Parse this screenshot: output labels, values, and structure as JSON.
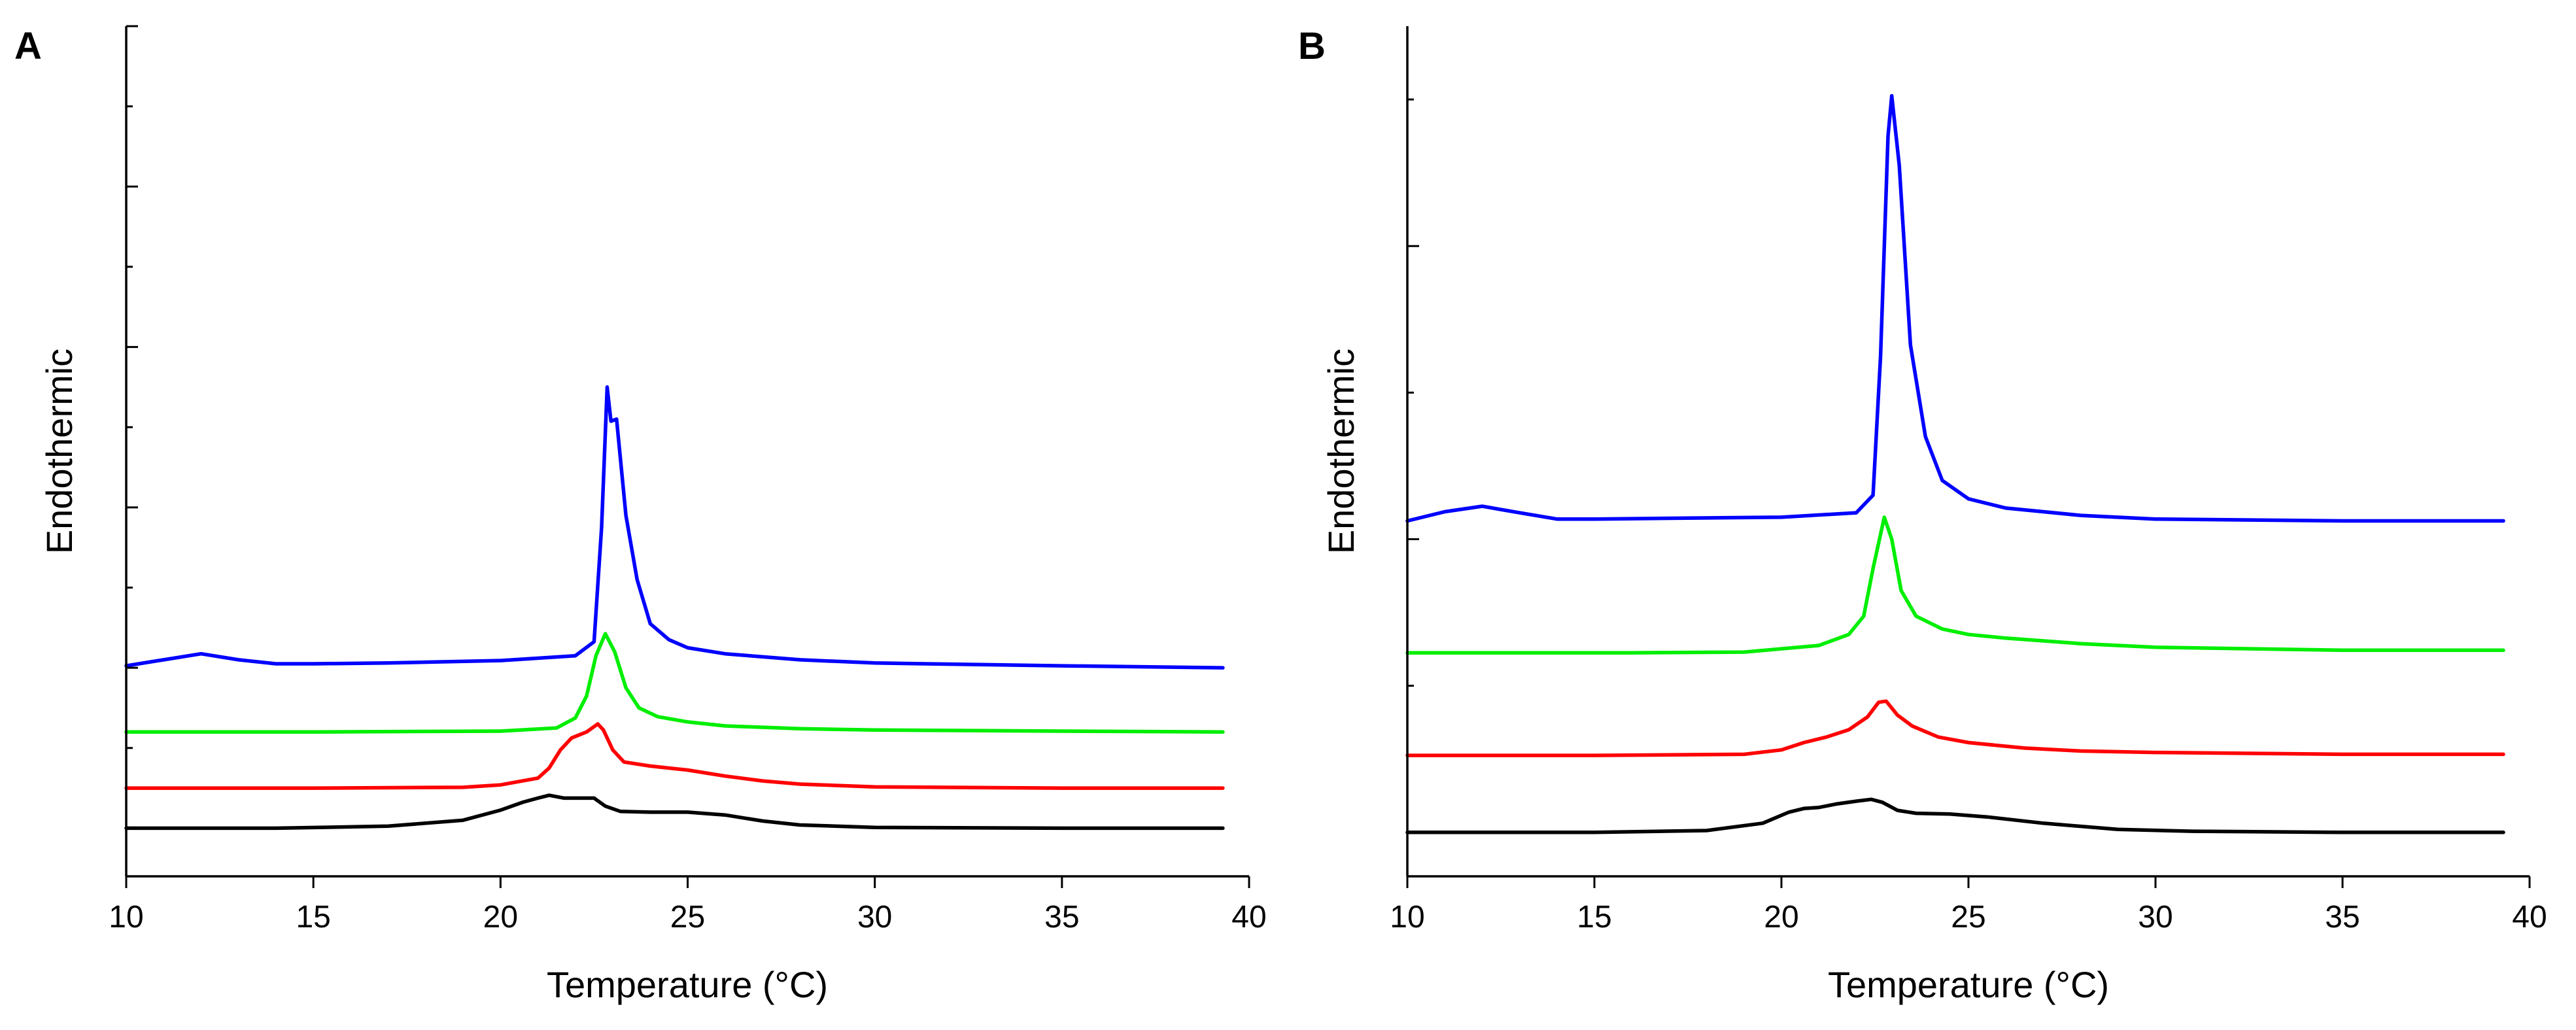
{
  "chart_data": [
    {
      "type": "line",
      "panel": "A",
      "xlabel": "Temperature (°C)",
      "ylabel": "Endothermic",
      "xlim": [
        10,
        40
      ],
      "ylim": [
        -1.2,
        20
      ],
      "xticks": [
        10,
        15,
        20,
        25,
        30,
        35,
        40
      ],
      "yticks_major": [
        0,
        4,
        8,
        12,
        16,
        20
      ],
      "yticks_minor": [
        2,
        6,
        10,
        14,
        18
      ],
      "series": [
        {
          "name": "black",
          "color": "#000000",
          "x": [
            10,
            14,
            17,
            19,
            20,
            20.6,
            21,
            21.3,
            21.7,
            22.2,
            22.5,
            22.8,
            23.2,
            24,
            25,
            26,
            27,
            28,
            30,
            35,
            39.3
          ],
          "y": [
            0,
            0,
            0.05,
            0.2,
            0.45,
            0.65,
            0.75,
            0.82,
            0.75,
            0.75,
            0.75,
            0.55,
            0.42,
            0.4,
            0.4,
            0.33,
            0.18,
            0.08,
            0.02,
            0,
            0
          ]
        },
        {
          "name": "red",
          "color": "#ff0000",
          "x": [
            10,
            15,
            19,
            20,
            21,
            21.3,
            21.6,
            21.9,
            22.3,
            22.6,
            22.75,
            23,
            23.3,
            24,
            25,
            26,
            27,
            28,
            30,
            35,
            39.3
          ],
          "y": [
            1,
            1,
            1.02,
            1.08,
            1.25,
            1.5,
            1.95,
            2.25,
            2.4,
            2.6,
            2.45,
            1.95,
            1.65,
            1.55,
            1.45,
            1.3,
            1.18,
            1.1,
            1.03,
            1,
            1
          ]
        },
        {
          "name": "green",
          "color": "#00ee00",
          "x": [
            10,
            15,
            20,
            21.5,
            22,
            22.3,
            22.55,
            22.8,
            23.05,
            23.35,
            23.7,
            24.2,
            25,
            26,
            28,
            30,
            35,
            39.3
          ],
          "y": [
            2.4,
            2.4,
            2.42,
            2.5,
            2.75,
            3.3,
            4.3,
            4.85,
            4.4,
            3.5,
            3,
            2.78,
            2.65,
            2.55,
            2.48,
            2.45,
            2.42,
            2.4
          ]
        },
        {
          "name": "blue",
          "color": "#0000ff",
          "x": [
            10,
            11,
            12,
            13,
            14,
            15,
            17,
            20,
            22,
            22.5,
            22.7,
            22.85,
            22.95,
            23.1,
            23.35,
            23.65,
            24,
            24.5,
            25,
            26,
            28,
            30,
            35,
            39.3
          ],
          "y": [
            4.05,
            4.2,
            4.35,
            4.2,
            4.1,
            4.1,
            4.12,
            4.18,
            4.3,
            4.65,
            7.5,
            11,
            10.15,
            10.2,
            7.8,
            6.2,
            5.1,
            4.7,
            4.5,
            4.35,
            4.2,
            4.12,
            4.05,
            4.0
          ]
        }
      ]
    },
    {
      "type": "line",
      "panel": "B",
      "xlabel": "Temperature (°C)",
      "ylabel": "Endothermic",
      "xlim": [
        10,
        40
      ],
      "ylim": [
        -1.2,
        22
      ],
      "xticks": [
        10,
        15,
        20,
        25,
        30,
        35,
        40
      ],
      "yticks_major": [
        0,
        8,
        16
      ],
      "yticks_minor": [
        4,
        12,
        20
      ],
      "series": [
        {
          "name": "black",
          "color": "#000000",
          "x": [
            10,
            15,
            18,
            19.5,
            20.2,
            20.6,
            21,
            21.5,
            22,
            22.4,
            22.7,
            23.1,
            23.6,
            24.5,
            25.5,
            27,
            29,
            31,
            35,
            39.3
          ],
          "y": [
            0,
            0,
            0.05,
            0.25,
            0.55,
            0.65,
            0.68,
            0.78,
            0.85,
            0.9,
            0.82,
            0.6,
            0.52,
            0.5,
            0.42,
            0.25,
            0.08,
            0.03,
            0,
            0
          ]
        },
        {
          "name": "red",
          "color": "#ff0000",
          "x": [
            10,
            15,
            19,
            20,
            20.6,
            21.2,
            21.8,
            22.3,
            22.6,
            22.8,
            23.1,
            23.5,
            24.2,
            25,
            26.5,
            28,
            30,
            35,
            39.3
          ],
          "y": [
            2.1,
            2.1,
            2.13,
            2.25,
            2.45,
            2.6,
            2.8,
            3.15,
            3.55,
            3.58,
            3.2,
            2.9,
            2.6,
            2.45,
            2.3,
            2.22,
            2.18,
            2.13,
            2.13
          ]
        },
        {
          "name": "green",
          "color": "#00ee00",
          "x": [
            10,
            13,
            16,
            19,
            21,
            21.8,
            22.2,
            22.45,
            22.75,
            22.95,
            23.2,
            23.6,
            24.3,
            25,
            26,
            28,
            30,
            35,
            39.3
          ],
          "y": [
            4.9,
            4.9,
            4.9,
            4.92,
            5.1,
            5.4,
            5.9,
            7.2,
            8.6,
            8.0,
            6.6,
            5.9,
            5.55,
            5.4,
            5.3,
            5.15,
            5.05,
            4.97,
            4.97
          ]
        },
        {
          "name": "blue",
          "color": "#0000ff",
          "x": [
            10,
            11,
            12,
            13,
            14,
            15,
            17,
            20,
            22,
            22.45,
            22.65,
            22.85,
            22.95,
            23.15,
            23.45,
            23.85,
            24.3,
            25,
            26,
            28,
            30,
            35,
            39.3
          ],
          "y": [
            8.5,
            8.75,
            8.9,
            8.72,
            8.55,
            8.55,
            8.57,
            8.6,
            8.72,
            9.2,
            13,
            19,
            20.1,
            18.2,
            13.3,
            10.8,
            9.6,
            9.1,
            8.85,
            8.65,
            8.55,
            8.5,
            8.5
          ]
        }
      ]
    }
  ],
  "panels": {
    "A": {
      "label": "A",
      "xlabel": "Temperature (°C)",
      "ylabel": "Endothermic"
    },
    "B": {
      "label": "B",
      "xlabel": "Temperature (°C)",
      "ylabel": "Endothermic"
    }
  }
}
